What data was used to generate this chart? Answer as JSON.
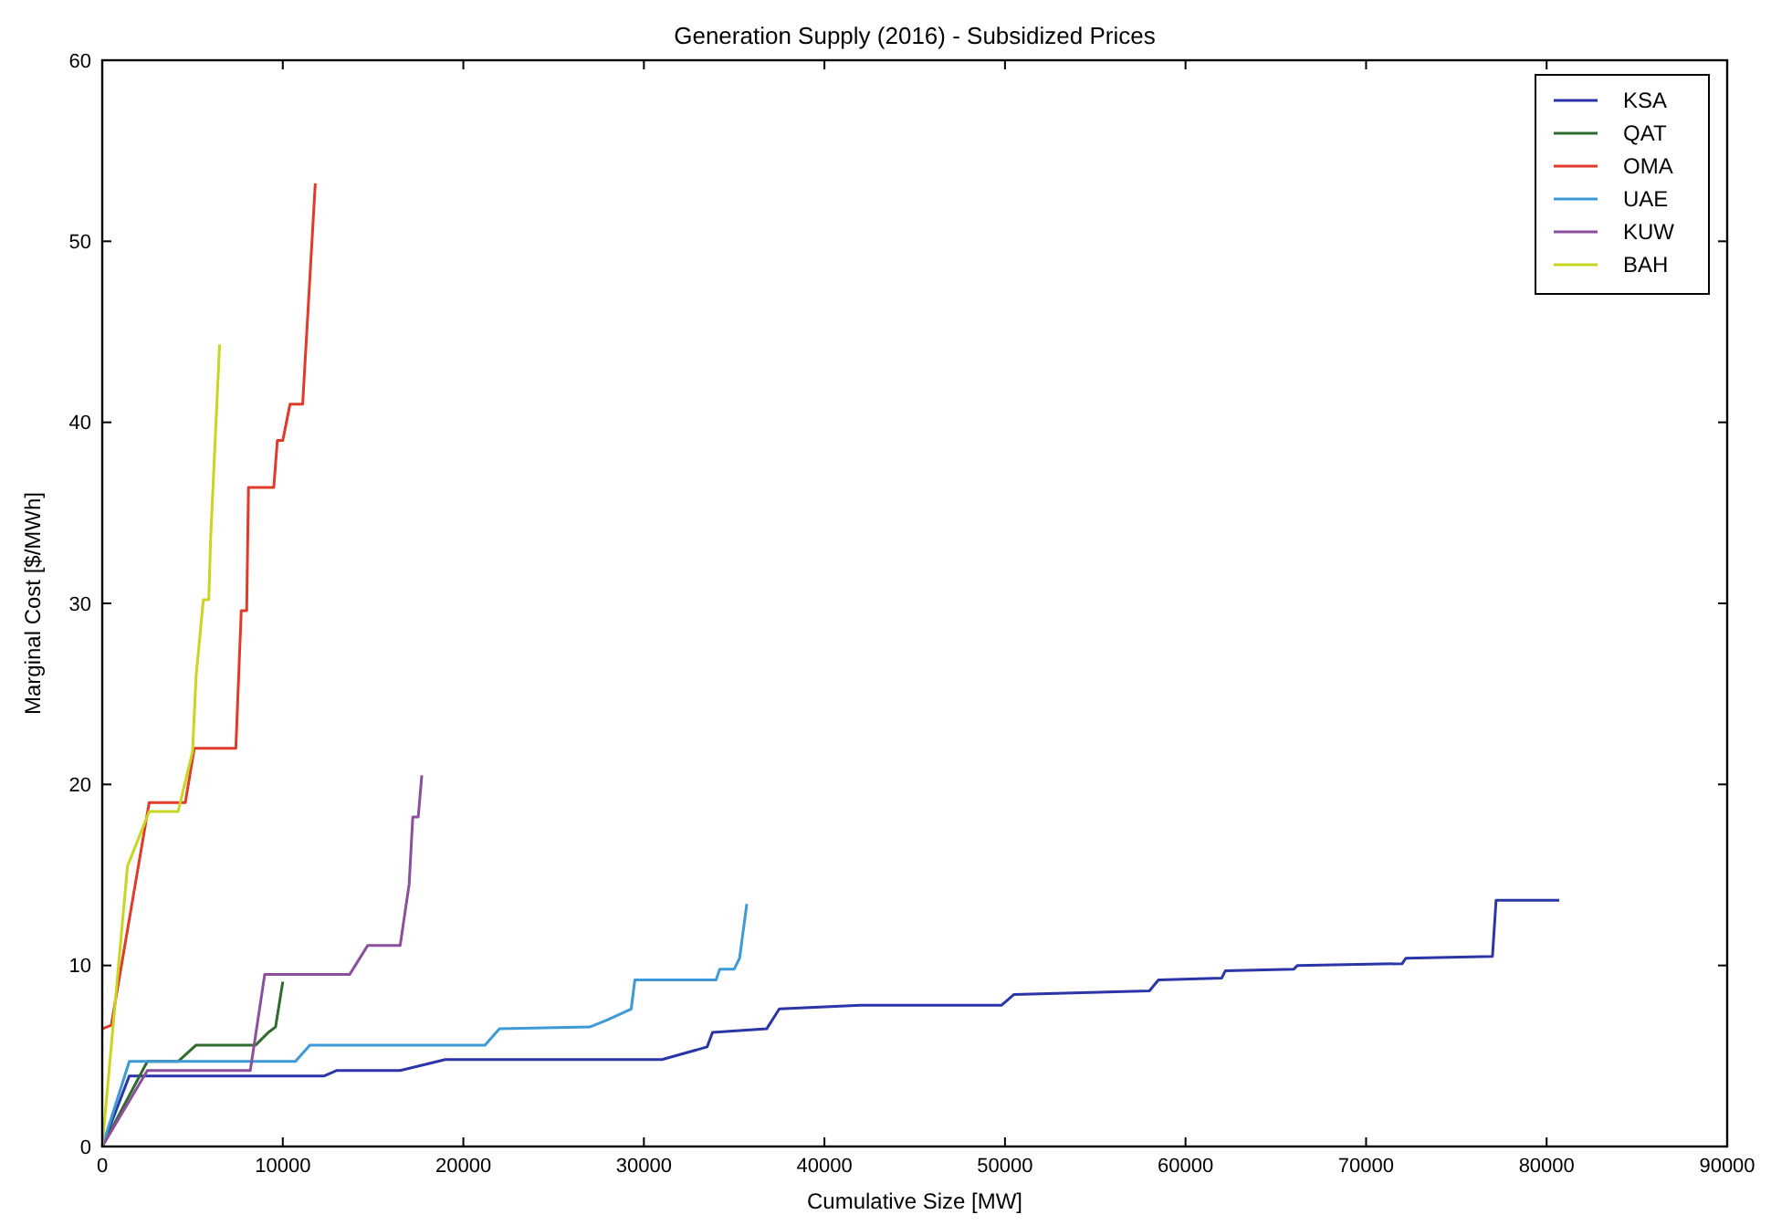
{
  "chart_data": {
    "type": "line",
    "title": "Generation Supply (2016) - Subsidized Prices",
    "xlabel": "Cumulative Size [MW]",
    "ylabel": "Marginal Cost [$/MWh]",
    "xlim": [
      0,
      90000
    ],
    "xticks": [
      0,
      10000,
      20000,
      30000,
      40000,
      50000,
      60000,
      70000,
      80000,
      90000
    ],
    "ylim": [
      0,
      60
    ],
    "yticks": [
      0,
      10,
      20,
      30,
      40,
      50,
      60
    ],
    "grid": false,
    "legend": "top right",
    "line_style": "solid",
    "marker": "none",
    "series": [
      {
        "name": "KSA",
        "color": "#2b35a8",
        "x": [
          0,
          1500,
          12300,
          13000,
          16500,
          19000,
          31000,
          33500,
          33800,
          36800,
          37500,
          42000,
          49800,
          50500,
          58000,
          58500,
          62000,
          62200,
          66000,
          66200,
          72000,
          72200,
          77000,
          77200,
          80700
        ],
        "values": [
          0,
          3.9,
          3.9,
          4.2,
          4.2,
          4.8,
          4.8,
          5.5,
          6.3,
          6.5,
          7.6,
          7.8,
          7.8,
          8.4,
          8.6,
          9.2,
          9.3,
          9.7,
          9.8,
          10,
          10.1,
          10.4,
          10.5,
          13.6,
          13.6
        ]
      },
      {
        "name": "QAT",
        "color": "#2f6b2f",
        "x": [
          0,
          2500,
          4200,
          5200,
          8500,
          9200,
          9600,
          10000
        ],
        "values": [
          0,
          4.7,
          4.7,
          5.6,
          5.6,
          6.3,
          6.6,
          9.1
        ]
      },
      {
        "name": "OMA",
        "color": "#e03a2a",
        "x": [
          0,
          500,
          2600,
          4600,
          5100,
          7400,
          7700,
          8000,
          8100,
          9500,
          9700,
          10000,
          10400,
          11100,
          11800
        ],
        "values": [
          6.5,
          6.7,
          19,
          19,
          22,
          22,
          29.6,
          29.6,
          36.4,
          36.4,
          39,
          39,
          41,
          41,
          53.2
        ]
      },
      {
        "name": "UAE",
        "color": "#3d9ad6",
        "x": [
          0,
          1500,
          10700,
          11500,
          21200,
          22000,
          27000,
          28000,
          29300,
          29500,
          34000,
          34200,
          35000,
          35300,
          35700
        ],
        "values": [
          0,
          4.7,
          4.7,
          5.6,
          5.6,
          6.5,
          6.6,
          7,
          7.6,
          9.2,
          9.2,
          9.8,
          9.8,
          10.4,
          13.4
        ]
      },
      {
        "name": "KUW",
        "color": "#8b4f9b",
        "x": [
          0,
          2500,
          8200,
          9000,
          13700,
          14700,
          16500,
          17000,
          17200,
          17500,
          17700
        ],
        "values": [
          0,
          4.2,
          4.2,
          9.5,
          9.5,
          11.1,
          11.1,
          14.5,
          18.2,
          18.2,
          20.5
        ]
      },
      {
        "name": "BAH",
        "color": "#c8d622",
        "x": [
          0,
          1400,
          2600,
          4200,
          5000,
          5200,
          5600,
          5900,
          6000,
          6500
        ],
        "values": [
          0,
          15.5,
          18.5,
          18.5,
          21.8,
          26,
          30.2,
          30.2,
          33.5,
          44.3
        ]
      }
    ]
  }
}
